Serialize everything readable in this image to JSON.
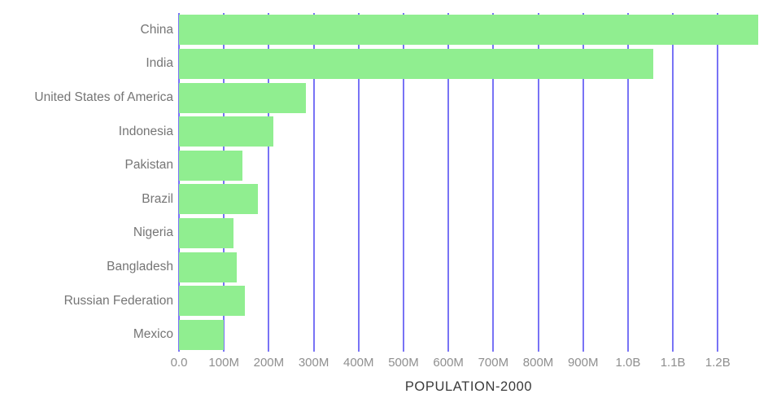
{
  "chart_data": {
    "type": "bar",
    "orientation": "horizontal",
    "title": "POPULATION-2000",
    "xlabel": "POPULATION-2000",
    "ylabel": "",
    "categories": [
      "China",
      "India",
      "United States of America",
      "Indonesia",
      "Pakistan",
      "Brazil",
      "Nigeria",
      "Bangladesh",
      "Russian Federation",
      "Mexico"
    ],
    "values": [
      1290000000,
      1056000000,
      282000000,
      211000000,
      142000000,
      175000000,
      122000000,
      128000000,
      147000000,
      99000000
    ],
    "xlim": [
      0,
      1290000000
    ],
    "x_ticks": [
      {
        "value": 0,
        "label": "0.0"
      },
      {
        "value": 100000000,
        "label": "100M"
      },
      {
        "value": 200000000,
        "label": "200M"
      },
      {
        "value": 300000000,
        "label": "300M"
      },
      {
        "value": 400000000,
        "label": "400M"
      },
      {
        "value": 500000000,
        "label": "500M"
      },
      {
        "value": 600000000,
        "label": "600M"
      },
      {
        "value": 700000000,
        "label": "700M"
      },
      {
        "value": 800000000,
        "label": "800M"
      },
      {
        "value": 900000000,
        "label": "900M"
      },
      {
        "value": 1000000000,
        "label": "1.0B"
      },
      {
        "value": 1100000000,
        "label": "1.1B"
      },
      {
        "value": 1200000000,
        "label": "1.2B"
      }
    ],
    "grid": true,
    "legend": false,
    "colors": {
      "bar": "#90ee90",
      "gridline": "#7873f5",
      "category_label": "#757575",
      "tick_label": "#8f8f8f",
      "title": "#3a3a3a",
      "background": "#ffffff"
    }
  }
}
